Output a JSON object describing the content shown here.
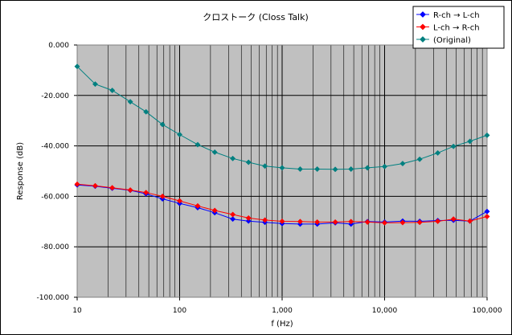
{
  "chart_data": {
    "type": "line",
    "title": "クロストーク (Closs Talk)",
    "xlabel": "f (Hz)",
    "ylabel": "Response (dB)",
    "x_scale": "log",
    "xlim": [
      10,
      100000
    ],
    "ylim": [
      -100,
      0
    ],
    "x_ticks": [
      10,
      100,
      1000,
      10000,
      100000
    ],
    "x_tick_labels": [
      "10",
      "100",
      "1,000",
      "10,000",
      "100,000"
    ],
    "y_ticks": [
      0,
      -20,
      -40,
      -60,
      -80,
      -100
    ],
    "y_tick_labels": [
      "0.000",
      "-20.000",
      "-40.000",
      "-60.000",
      "-80.000",
      "-100.000"
    ],
    "grid": true,
    "legend_position": "top-right",
    "x": [
      10,
      15,
      22,
      33,
      47,
      68,
      100,
      150,
      220,
      330,
      470,
      680,
      1000,
      1500,
      2200,
      3300,
      4700,
      6800,
      10000,
      15000,
      22000,
      33000,
      47000,
      68000,
      100000
    ],
    "series": [
      {
        "name": "R-ch → L-ch",
        "color": "#0000ff",
        "marker": "diamond",
        "values": [
          -55.5,
          -56.0,
          -56.8,
          -57.6,
          -59.0,
          -61.0,
          -62.8,
          -64.5,
          -66.5,
          -69.0,
          -69.8,
          -70.3,
          -70.8,
          -71.0,
          -71.0,
          -70.5,
          -71.0,
          -70.0,
          -70.2,
          -69.8,
          -69.9,
          -69.6,
          -69.5,
          -69.8,
          -66.0
        ]
      },
      {
        "name": "L-ch → R-ch",
        "color": "#ff0000",
        "marker": "diamond",
        "values": [
          -55.2,
          -55.8,
          -56.6,
          -57.5,
          -58.5,
          -60.0,
          -61.8,
          -63.8,
          -65.6,
          -67.2,
          -68.6,
          -69.4,
          -69.9,
          -70.0,
          -70.2,
          -70.2,
          -70.0,
          -70.2,
          -70.5,
          -70.4,
          -70.3,
          -69.9,
          -69.0,
          -69.8,
          -68.0
        ]
      },
      {
        "name": "(Original)",
        "color": "#008080",
        "marker": "diamond",
        "values": [
          -8.5,
          -15.5,
          -18.0,
          -22.5,
          -26.5,
          -31.5,
          -35.5,
          -39.5,
          -42.5,
          -45.0,
          -46.5,
          -48.0,
          -48.7,
          -49.2,
          -49.2,
          -49.3,
          -49.2,
          -48.7,
          -48.2,
          -47.0,
          -45.3,
          -42.8,
          -40.2,
          -38.2,
          -35.8
        ]
      }
    ]
  }
}
